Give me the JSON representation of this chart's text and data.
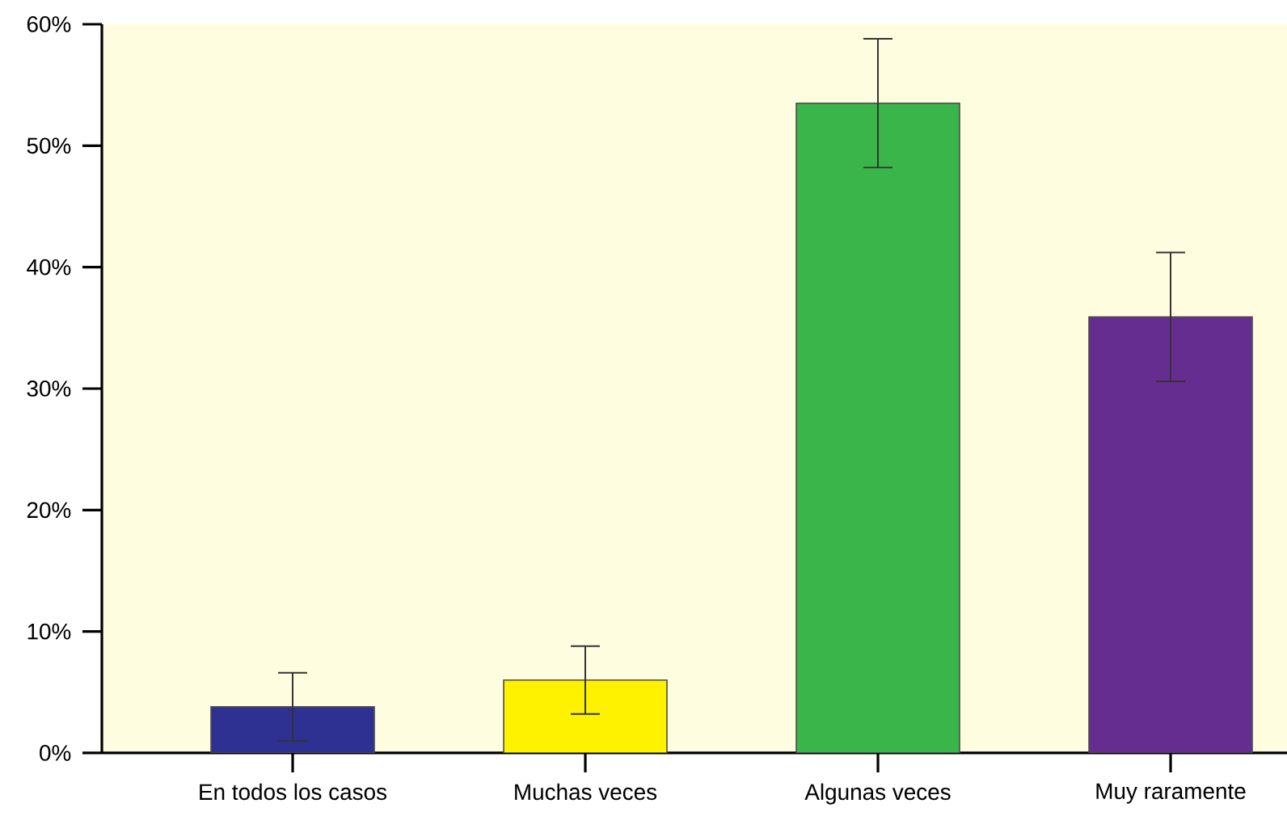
{
  "chart_data": {
    "type": "bar",
    "categories": [
      "En todos los casos",
      "Muchas veces",
      "Algunas veces",
      "Muy raramente"
    ],
    "values": [
      3.8,
      6.0,
      53.5,
      35.9
    ],
    "errors": [
      2.8,
      2.8,
      5.3,
      5.3
    ],
    "colors": [
      "#2e3192",
      "#fff200",
      "#39b54a",
      "#662d91"
    ],
    "ylim": [
      0,
      60
    ],
    "yticks": [
      {
        "value": 0,
        "label": "0%"
      },
      {
        "value": 10,
        "label": "10%"
      },
      {
        "value": 20,
        "label": "20%"
      },
      {
        "value": 30,
        "label": "30%"
      },
      {
        "value": 40,
        "label": "40%"
      },
      {
        "value": 50,
        "label": "50%"
      },
      {
        "value": 60,
        "label": "60%"
      }
    ],
    "grid": false
  }
}
